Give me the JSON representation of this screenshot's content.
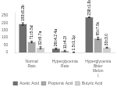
{
  "chart_data": {
    "type": "bar",
    "categories": [
      "Normal Rats",
      "Hyperglycemia Rats",
      "Hyperglycemia\nBitter Melon ("
    ],
    "series": [
      {
        "name": "Acetic Acid",
        "color": "#6e6e6e",
        "values": [
          193,
          26,
          238
        ],
        "errors": [
          8.2,
          4.2,
          1.8
        ],
        "value_labels": [
          "193±8.2b",
          "26±4.2 4a",
          "238±1.8a"
        ]
      },
      {
        "name": "Propionic Acid",
        "color": "#a8a8a8",
        "values": [
          71,
          11,
          95
        ],
        "errors": [
          5.5,
          4.2,
          7.9
        ],
        "value_labels": [
          "71±5.5d",
          "11±4.2l",
          "95±7.9c"
        ]
      },
      {
        "name": "Butyric Acid",
        "color": "#d0d0d0",
        "values": [
          32,
          1.5,
          33
        ],
        "errors": [
          6.7,
          1.1,
          3.0
        ],
        "value_labels": [
          "32±6.7a",
          "1.5±1.1p",
          "33±3.0"
        ]
      }
    ],
    "ylim": [
      0,
      270
    ],
    "yticks": [
      0,
      50,
      100,
      150,
      200,
      250
    ],
    "grid": false,
    "legend": "bottom",
    "data_labels": true
  }
}
